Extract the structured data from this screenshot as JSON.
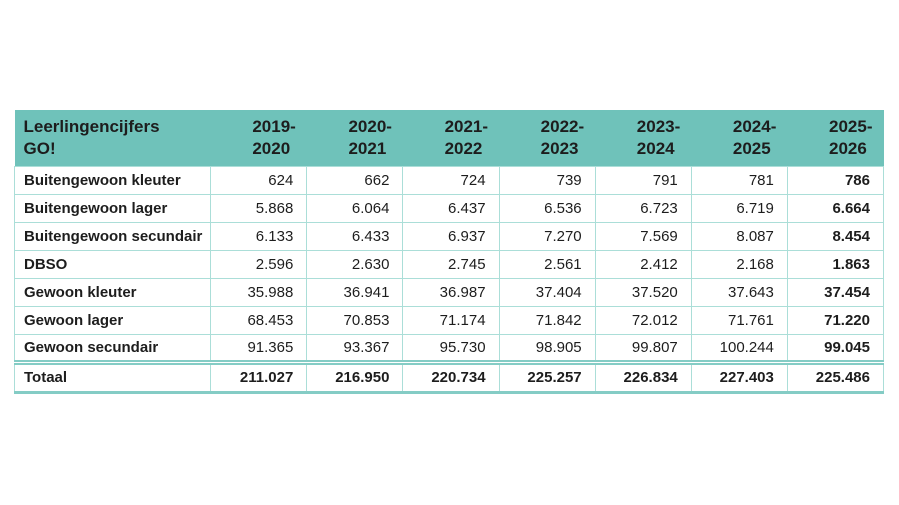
{
  "table": {
    "title_line1": "Leerlingencijfers",
    "title_line2": "GO!",
    "columns": [
      {
        "line1": "2019-",
        "line2": "2020"
      },
      {
        "line1": "2020-",
        "line2": "2021"
      },
      {
        "line1": "2021-",
        "line2": "2022"
      },
      {
        "line1": "2022-",
        "line2": "2023"
      },
      {
        "line1": "2023-",
        "line2": "2024"
      },
      {
        "line1": "2024-",
        "line2": "2025"
      },
      {
        "line1": "2025-",
        "line2": "2026"
      }
    ],
    "rows": [
      {
        "label": "Buitengewoon kleuter",
        "values": [
          "624",
          "662",
          "724",
          "739",
          "791",
          "781",
          "786"
        ]
      },
      {
        "label": "Buitengewoon lager",
        "values": [
          "5.868",
          "6.064",
          "6.437",
          "6.536",
          "6.723",
          "6.719",
          "6.664"
        ]
      },
      {
        "label": "Buitengewoon secundair",
        "values": [
          "6.133",
          "6.433",
          "6.937",
          "7.270",
          "7.569",
          "8.087",
          "8.454"
        ]
      },
      {
        "label": "DBSO",
        "values": [
          "2.596",
          "2.630",
          "2.745",
          "2.561",
          "2.412",
          "2.168",
          "1.863"
        ]
      },
      {
        "label": "Gewoon kleuter",
        "values": [
          "35.988",
          "36.941",
          "36.987",
          "37.404",
          "37.520",
          "37.643",
          "37.454"
        ]
      },
      {
        "label": "Gewoon lager",
        "values": [
          "68.453",
          "70.853",
          "71.174",
          "71.842",
          "72.012",
          "71.761",
          "71.220"
        ]
      },
      {
        "label": "Gewoon secundair",
        "values": [
          "91.365",
          "93.367",
          "95.730",
          "98.905",
          "99.807",
          "100.244",
          "99.045"
        ]
      }
    ],
    "total": {
      "label": "Totaal",
      "values": [
        "211.027",
        "216.950",
        "220.734",
        "225.257",
        "226.834",
        "227.403",
        "225.486"
      ]
    },
    "colors": {
      "header_bg": "#6FC2BA",
      "border_light": "#ABDED8",
      "border_strong": "#84CCC5",
      "text": "#1D1D1D"
    }
  },
  "chart_data": {
    "type": "table",
    "title": "Leerlingencijfers GO!",
    "categories": [
      "2019-2020",
      "2020-2021",
      "2021-2022",
      "2022-2023",
      "2023-2024",
      "2024-2025",
      "2025-2026"
    ],
    "series": [
      {
        "name": "Buitengewoon kleuter",
        "values": [
          624,
          662,
          724,
          739,
          791,
          781,
          786
        ]
      },
      {
        "name": "Buitengewoon lager",
        "values": [
          5868,
          6064,
          6437,
          6536,
          6723,
          6719,
          6664
        ]
      },
      {
        "name": "Buitengewoon secundair",
        "values": [
          6133,
          6433,
          6937,
          7270,
          7569,
          8087,
          8454
        ]
      },
      {
        "name": "DBSO",
        "values": [
          2596,
          2630,
          2745,
          2561,
          2412,
          2168,
          1863
        ]
      },
      {
        "name": "Gewoon kleuter",
        "values": [
          35988,
          36941,
          36987,
          37404,
          37520,
          37643,
          37454
        ]
      },
      {
        "name": "Gewoon lager",
        "values": [
          68453,
          70853,
          71174,
          71842,
          72012,
          71761,
          71220
        ]
      },
      {
        "name": "Gewoon secundair",
        "values": [
          91365,
          93367,
          95730,
          98905,
          99807,
          100244,
          99045
        ]
      },
      {
        "name": "Totaal",
        "values": [
          211027,
          216950,
          220734,
          225257,
          226834,
          227403,
          225486
        ]
      }
    ],
    "layout": {
      "number_format": "thousands separated by dot",
      "last_column_bold": true,
      "total_row_bold": true
    }
  }
}
